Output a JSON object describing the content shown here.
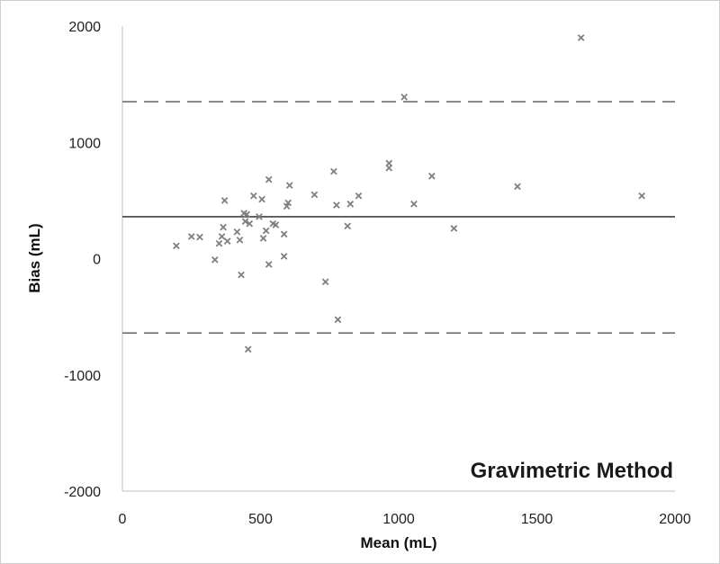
{
  "chart_data": {
    "type": "scatter",
    "title": "",
    "annotation": "Gravimetric Method",
    "xlabel": "Mean (mL)",
    "ylabel": "Bias (mL)",
    "xlim": [
      0,
      2000
    ],
    "ylim": [
      -2000,
      2000
    ],
    "x_ticks": [
      0,
      500,
      1000,
      1500,
      2000
    ],
    "y_ticks": [
      2000,
      1000,
      0,
      -1000,
      -2000
    ],
    "x_tick_labels": [
      "0",
      "500",
      "1000",
      "1500",
      "2000"
    ],
    "y_tick_labels": [
      "2000",
      "1000",
      "0",
      "-1000",
      "-2000"
    ],
    "grid": false,
    "marker": "x",
    "colors": {
      "marker": "#808080",
      "mean_line": "#404040",
      "limit_line": "#707070",
      "axis": "#bfbfbf"
    },
    "reference_lines": [
      {
        "kind": "upper-limit",
        "style": "dashed",
        "y": 1350
      },
      {
        "kind": "mean-bias",
        "style": "solid",
        "y": 360
      },
      {
        "kind": "lower-limit",
        "style": "dashed",
        "y": -640
      }
    ],
    "points": [
      [
        195,
        110
      ],
      [
        250,
        190
      ],
      [
        280,
        185
      ],
      [
        335,
        -10
      ],
      [
        350,
        130
      ],
      [
        360,
        190
      ],
      [
        365,
        270
      ],
      [
        370,
        500
      ],
      [
        380,
        150
      ],
      [
        415,
        230
      ],
      [
        425,
        160
      ],
      [
        430,
        -140
      ],
      [
        440,
        390
      ],
      [
        445,
        320
      ],
      [
        450,
        380
      ],
      [
        455,
        -780
      ],
      [
        460,
        300
      ],
      [
        475,
        540
      ],
      [
        495,
        360
      ],
      [
        505,
        510
      ],
      [
        510,
        175
      ],
      [
        520,
        240
      ],
      [
        530,
        680
      ],
      [
        530,
        -50
      ],
      [
        545,
        300
      ],
      [
        555,
        290
      ],
      [
        585,
        20
      ],
      [
        585,
        210
      ],
      [
        595,
        450
      ],
      [
        600,
        480
      ],
      [
        605,
        630
      ],
      [
        695,
        550
      ],
      [
        735,
        -200
      ],
      [
        765,
        750
      ],
      [
        775,
        460
      ],
      [
        780,
        -525
      ],
      [
        815,
        280
      ],
      [
        825,
        470
      ],
      [
        855,
        540
      ],
      [
        965,
        780
      ],
      [
        965,
        820
      ],
      [
        1020,
        1390
      ],
      [
        1055,
        470
      ],
      [
        1120,
        710
      ],
      [
        1200,
        260
      ],
      [
        1430,
        620
      ],
      [
        1660,
        1900
      ],
      [
        1880,
        540
      ]
    ]
  }
}
